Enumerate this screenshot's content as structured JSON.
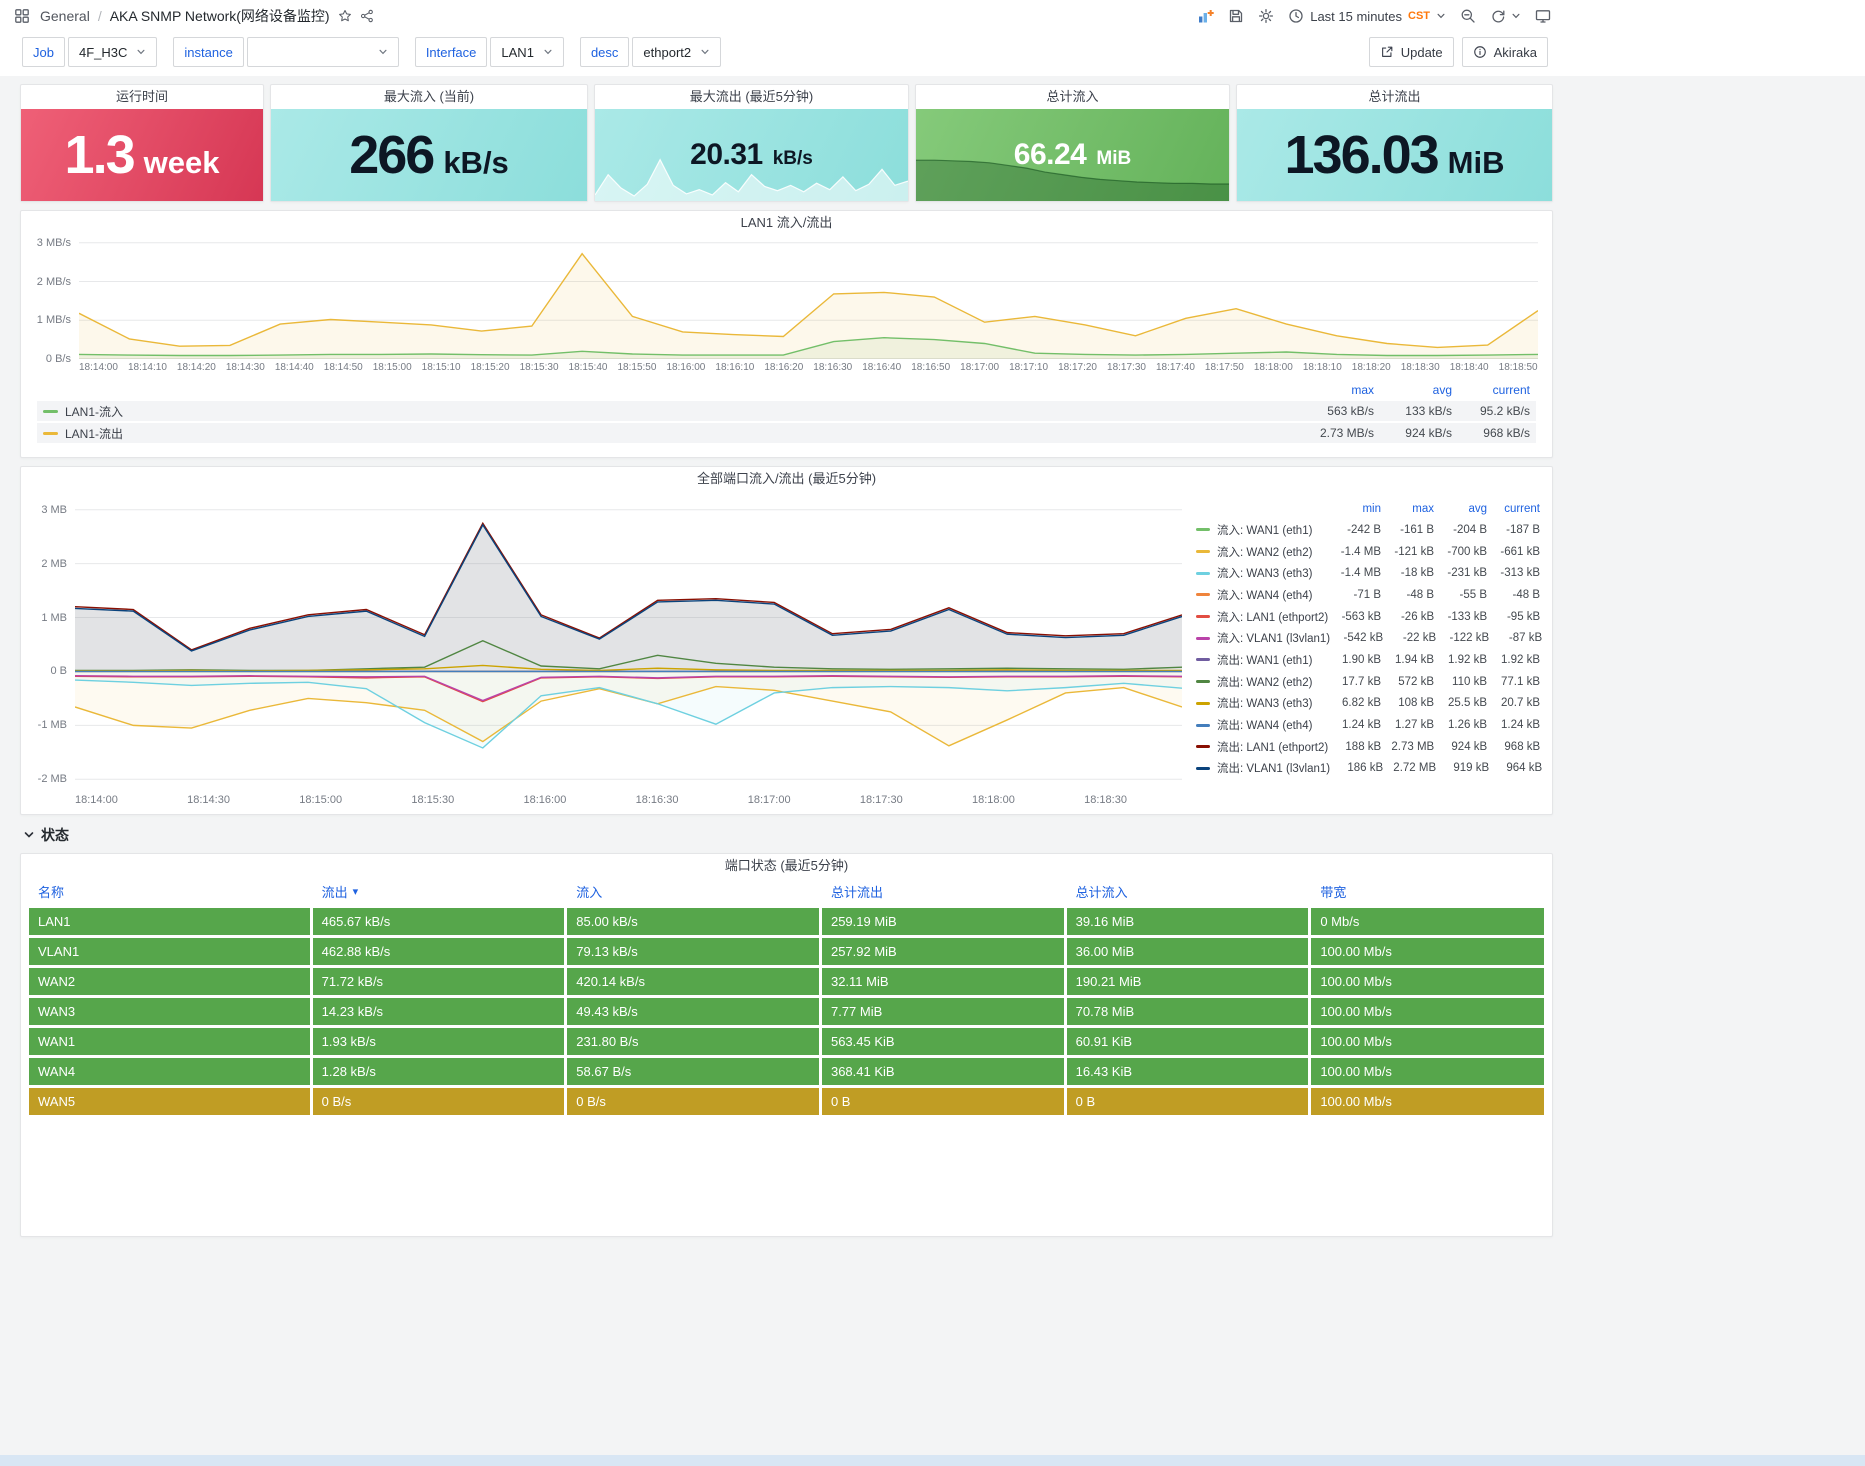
{
  "nav": {
    "breadcrumb_root": "General",
    "separator": "/",
    "title": "AKA SNMP Network(网络设备监控)",
    "time_label": "Last 15 minutes",
    "timezone": "CST"
  },
  "toolbar": {
    "update": "Update",
    "user": "Akiraka"
  },
  "variables": {
    "job_label": "Job",
    "job_value": "4F_H3C",
    "instance_label": "instance",
    "instance_value": "",
    "interface_label": "Interface",
    "interface_value": "LAN1",
    "desc_label": "desc",
    "desc_value": "ethport2"
  },
  "colors": {
    "accent_blue": "#1f62e0",
    "orange": "#ff780a",
    "stat_red": "#dd3e5b",
    "stat_cyan": "#9fe3e1",
    "stat_green": "#74c06b",
    "table_green": "#56a64b",
    "table_yellow": "#c09d24"
  },
  "stats": [
    {
      "title": "运行时间",
      "value": "1.3",
      "unit": "week"
    },
    {
      "title": "最大流入 (当前)",
      "value": "266",
      "unit": "kB/s"
    },
    {
      "title": "最大流出 (最近5分钟)",
      "value": "20.31",
      "unit": "kB/s",
      "sparkline": [
        0.12,
        0.5,
        0.25,
        0.1,
        0.32,
        0.78,
        0.3,
        0.14,
        0.22,
        0.12,
        0.35,
        0.18,
        0.5,
        0.28,
        0.2,
        0.3,
        0.18,
        0.34,
        0.22,
        0.46,
        0.2,
        0.32,
        0.6,
        0.3,
        0.38
      ]
    },
    {
      "title": "总计流入",
      "value": "66.24",
      "unit": "MiB",
      "sparkline": [
        0.62,
        0.62,
        0.61,
        0.6,
        0.58,
        0.54,
        0.5,
        0.44,
        0.4,
        0.36,
        0.33,
        0.31,
        0.29,
        0.28,
        0.27,
        0.27,
        0.26,
        0.26
      ]
    },
    {
      "title": "总计流出",
      "value": "136.03",
      "unit": "MiB"
    }
  ],
  "status_section": "状态",
  "chart_data": [
    {
      "type": "line",
      "title": "LAN1 流入/流出",
      "unit": "MB/s",
      "ylim": [
        0,
        3.15
      ],
      "y_ticks": [
        {
          "value": 3,
          "label": "3 MB/s"
        },
        {
          "value": 2,
          "label": "2 MB/s"
        },
        {
          "value": 1,
          "label": "1 MB/s"
        },
        {
          "value": 0,
          "label": "0 B/s"
        }
      ],
      "x_labels": [
        "18:14:00",
        "18:14:10",
        "18:14:20",
        "18:14:30",
        "18:14:40",
        "18:14:50",
        "18:15:00",
        "18:15:10",
        "18:15:20",
        "18:15:30",
        "18:15:40",
        "18:15:50",
        "18:16:00",
        "18:16:10",
        "18:16:20",
        "18:16:30",
        "18:16:40",
        "18:16:50",
        "18:17:00",
        "18:17:10",
        "18:17:20",
        "18:17:30",
        "18:17:40",
        "18:17:50",
        "18:18:00",
        "18:18:10",
        "18:18:20",
        "18:18:30",
        "18:18:40",
        "18:18:50"
      ],
      "legend_cols": [
        "max",
        "avg",
        "current"
      ],
      "series": [
        {
          "name": "LAN1-流入",
          "color": "#73bf69",
          "fill": true,
          "fill_opacity": 0.1,
          "values": [
            0.12,
            0.1,
            0.09,
            0.09,
            0.1,
            0.12,
            0.12,
            0.13,
            0.11,
            0.1,
            0.2,
            0.13,
            0.1,
            0.1,
            0.1,
            0.45,
            0.55,
            0.5,
            0.4,
            0.15,
            0.12,
            0.1,
            0.12,
            0.15,
            0.18,
            0.12,
            0.09,
            0.09,
            0.1,
            0.12
          ],
          "legend": {
            "max": "563 kB/s",
            "avg": "133 kB/s",
            "current": "95.2 kB/s"
          }
        },
        {
          "name": "LAN1-流出",
          "color": "#eab839",
          "fill": true,
          "fill_opacity": 0.1,
          "values": [
            1.18,
            0.52,
            0.33,
            0.35,
            0.9,
            1.02,
            0.95,
            0.88,
            0.72,
            0.85,
            2.72,
            1.1,
            0.7,
            0.63,
            0.58,
            1.68,
            1.72,
            1.6,
            0.95,
            1.1,
            0.88,
            0.6,
            1.05,
            1.3,
            0.9,
            0.6,
            0.4,
            0.3,
            0.36,
            1.25
          ],
          "legend": {
            "max": "2.73 MB/s",
            "avg": "924 kB/s",
            "current": "968 kB/s"
          }
        }
      ]
    },
    {
      "type": "line",
      "title": "全部端口流入/流出 (最近5分钟)",
      "unit": "MB",
      "ylim": [
        -2.2,
        3.2
      ],
      "y_ticks": [
        {
          "value": 3,
          "label": "3 MB"
        },
        {
          "value": 2,
          "label": "2 MB"
        },
        {
          "value": 1,
          "label": "1 MB"
        },
        {
          "value": 0,
          "label": "0 B"
        },
        {
          "value": -1,
          "label": "-1 MB"
        },
        {
          "value": -2,
          "label": "-2 MB"
        }
      ],
      "x_labels": [
        "18:14:00",
        "18:14:30",
        "18:15:00",
        "18:15:30",
        "18:16:00",
        "18:16:30",
        "18:17:00",
        "18:17:30",
        "18:18:00",
        "18:18:30"
      ],
      "legend_cols": [
        "min",
        "max",
        "avg",
        "current"
      ],
      "series": [
        {
          "name": "流入: WAN1 (eth1)",
          "color": "#73bf69",
          "values": [
            0,
            0,
            0,
            0,
            0,
            0,
            0,
            0,
            0,
            0,
            0,
            0,
            0,
            0,
            0,
            0,
            0,
            0,
            0,
            0
          ],
          "legend": {
            "min": "-242 B",
            "max": "-161 B",
            "avg": "-204 B",
            "current": "-187 B"
          }
        },
        {
          "name": "流入: WAN2 (eth2)",
          "color": "#eab839",
          "fill": true,
          "fill_opacity": 0.07,
          "values": [
            -0.66,
            -1.0,
            -1.05,
            -0.72,
            -0.5,
            -0.58,
            -0.72,
            -1.3,
            -0.55,
            -0.32,
            -0.6,
            -0.28,
            -0.35,
            -0.55,
            -0.75,
            -1.38,
            -0.9,
            -0.4,
            -0.3,
            -0.66
          ],
          "legend": {
            "min": "-1.4 MB",
            "max": "-121 kB",
            "avg": "-700 kB",
            "current": "-661 kB"
          }
        },
        {
          "name": "流入: WAN3 (eth3)",
          "color": "#6ed0e0",
          "fill": true,
          "fill_opacity": 0.07,
          "values": [
            -0.16,
            -0.2,
            -0.26,
            -0.22,
            -0.2,
            -0.32,
            -0.95,
            -1.42,
            -0.45,
            -0.3,
            -0.6,
            -0.98,
            -0.4,
            -0.3,
            -0.28,
            -0.3,
            -0.36,
            -0.3,
            -0.22,
            -0.31
          ],
          "legend": {
            "min": "-1.4 MB",
            "max": "-18 kB",
            "avg": "-231 kB",
            "current": "-313 kB"
          }
        },
        {
          "name": "流入: WAN4 (eth4)",
          "color": "#ef843c",
          "values": [
            0,
            0,
            0,
            0,
            0,
            0,
            0,
            0,
            0,
            0,
            0,
            0,
            0,
            0,
            0,
            0,
            0,
            0,
            0,
            0
          ],
          "legend": {
            "min": "-71 B",
            "max": "-48 B",
            "avg": "-55 B",
            "current": "-48 B"
          }
        },
        {
          "name": "流入: LAN1 (ethport2)",
          "color": "#e24d42",
          "values": [
            -0.09,
            -0.1,
            -0.1,
            -0.09,
            -0.1,
            -0.12,
            -0.1,
            -0.56,
            -0.12,
            -0.1,
            -0.13,
            -0.1,
            -0.1,
            -0.09,
            -0.1,
            -0.11,
            -0.1,
            -0.1,
            -0.09,
            -0.1
          ],
          "legend": {
            "min": "-563 kB",
            "max": "-26 kB",
            "avg": "-133 kB",
            "current": "-95 kB"
          }
        },
        {
          "name": "流入: VLAN1 (l3vlan1)",
          "color": "#ba43a9",
          "values": [
            -0.08,
            -0.09,
            -0.09,
            -0.08,
            -0.09,
            -0.1,
            -0.09,
            -0.54,
            -0.11,
            -0.09,
            -0.12,
            -0.09,
            -0.09,
            -0.08,
            -0.09,
            -0.1,
            -0.09,
            -0.09,
            -0.08,
            -0.09
          ],
          "legend": {
            "min": "-542 kB",
            "max": "-22 kB",
            "avg": "-122 kB",
            "current": "-87 kB"
          }
        },
        {
          "name": "流出: WAN1 (eth1)",
          "color": "#705da0",
          "values": [
            0,
            0,
            0,
            0,
            0,
            0,
            0,
            0,
            0,
            0,
            0,
            0,
            0,
            0,
            0,
            0,
            0,
            0,
            0,
            0
          ],
          "legend": {
            "min": "1.90 kB",
            "max": "1.94 kB",
            "avg": "1.92 kB",
            "current": "1.92 kB"
          }
        },
        {
          "name": "流出: WAN2 (eth2)",
          "color": "#508642",
          "values": [
            0.02,
            0.02,
            0.03,
            0.02,
            0.02,
            0.05,
            0.08,
            0.57,
            0.1,
            0.05,
            0.3,
            0.15,
            0.08,
            0.05,
            0.04,
            0.05,
            0.06,
            0.05,
            0.04,
            0.08
          ],
          "legend": {
            "min": "17.7 kB",
            "max": "572 kB",
            "avg": "110 kB",
            "current": "77.1 kB"
          }
        },
        {
          "name": "流出: WAN3 (eth3)",
          "color": "#cca300",
          "values": [
            0.01,
            0.01,
            0.02,
            0.01,
            0.02,
            0.03,
            0.05,
            0.11,
            0.04,
            0.02,
            0.06,
            0.03,
            0.02,
            0.02,
            0.02,
            0.02,
            0.03,
            0.02,
            0.02,
            0.02
          ],
          "legend": {
            "min": "6.82 kB",
            "max": "108 kB",
            "avg": "25.5 kB",
            "current": "20.7 kB"
          }
        },
        {
          "name": "流出: WAN4 (eth4)",
          "color": "#447ebc",
          "values": [
            0,
            0,
            0,
            0,
            0,
            0,
            0,
            0,
            0,
            0,
            0,
            0,
            0,
            0,
            0,
            0,
            0,
            0,
            0,
            0
          ],
          "legend": {
            "min": "1.24 kB",
            "max": "1.27 kB",
            "avg": "1.26 kB",
            "current": "1.24 kB"
          }
        },
        {
          "name": "流出: LAN1 (ethport2)",
          "color": "#890f02",
          "values": [
            1.2,
            1.15,
            0.4,
            0.8,
            1.05,
            1.15,
            0.68,
            2.75,
            1.05,
            0.62,
            1.32,
            1.35,
            1.28,
            0.7,
            0.78,
            1.18,
            0.72,
            0.66,
            0.7,
            1.05
          ],
          "legend": {
            "min": "188 kB",
            "max": "2.73 MB",
            "avg": "924 kB",
            "current": "968 kB"
          }
        },
        {
          "name": "流出: VLAN1 (l3vlan1)",
          "color": "#0a437c",
          "fill": true,
          "fill_color": "#8a8f99",
          "fill_opacity": 0.25,
          "values": [
            1.17,
            1.12,
            0.38,
            0.77,
            1.02,
            1.12,
            0.65,
            2.72,
            1.02,
            0.6,
            1.29,
            1.32,
            1.25,
            0.67,
            0.75,
            1.15,
            0.69,
            0.63,
            0.67,
            1.02
          ],
          "legend": {
            "min": "186 kB",
            "max": "2.72 MB",
            "avg": "919 kB",
            "current": "964 kB"
          }
        }
      ]
    }
  ],
  "table": {
    "title": "端口状态 (最近5分钟)",
    "columns": [
      "名称",
      "流出",
      "流入",
      "总计流出",
      "总计流入",
      "带宽"
    ],
    "sorted_column": "流出",
    "rows": [
      {
        "cells": [
          "LAN1",
          "465.67 kB/s",
          "85.00 kB/s",
          "259.19 MiB",
          "39.16 MiB",
          "0 Mb/s"
        ],
        "color": "#56a64b"
      },
      {
        "cells": [
          "VLAN1",
          "462.88 kB/s",
          "79.13 kB/s",
          "257.92 MiB",
          "36.00 MiB",
          "100.00 Mb/s"
        ],
        "color": "#56a64b"
      },
      {
        "cells": [
          "WAN2",
          "71.72 kB/s",
          "420.14 kB/s",
          "32.11 MiB",
          "190.21 MiB",
          "100.00 Mb/s"
        ],
        "color": "#56a64b"
      },
      {
        "cells": [
          "WAN3",
          "14.23 kB/s",
          "49.43 kB/s",
          "7.77 MiB",
          "70.78 MiB",
          "100.00 Mb/s"
        ],
        "color": "#56a64b"
      },
      {
        "cells": [
          "WAN1",
          "1.93 kB/s",
          "231.80 B/s",
          "563.45 KiB",
          "60.91 KiB",
          "100.00 Mb/s"
        ],
        "color": "#56a64b"
      },
      {
        "cells": [
          "WAN4",
          "1.28 kB/s",
          "58.67 B/s",
          "368.41 KiB",
          "16.43 KiB",
          "100.00 Mb/s"
        ],
        "color": "#56a64b"
      },
      {
        "cells": [
          "WAN5",
          "0 B/s",
          "0 B/s",
          "0 B",
          "0 B",
          "100.00 Mb/s"
        ],
        "color": "#c09d24"
      }
    ]
  }
}
